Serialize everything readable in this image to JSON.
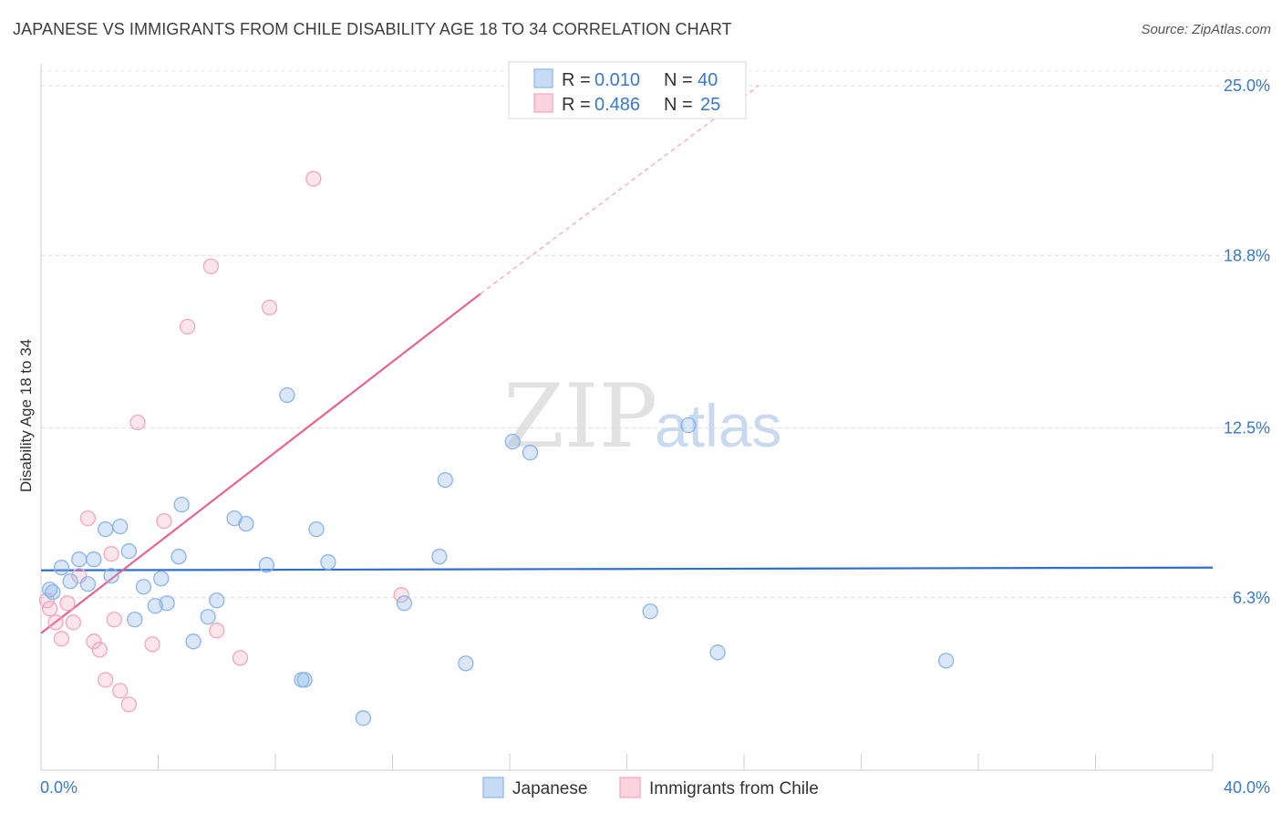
{
  "header": {
    "title": "JAPANESE VS IMMIGRANTS FROM CHILE DISABILITY AGE 18 TO 34 CORRELATION CHART",
    "source": "Source: ZipAtlas.com"
  },
  "watermark": {
    "zip": "ZIP",
    "atlas": "atlas"
  },
  "legend": {
    "r_label": "R =",
    "n_label": "N =",
    "entries": [
      {
        "r": "0.010",
        "n": "40"
      },
      {
        "r": "0.486",
        "n": "25"
      }
    ]
  },
  "chart_data": {
    "type": "scatter",
    "title": "JAPANESE VS IMMIGRANTS FROM CHILE DISABILITY AGE 18 TO 34 CORRELATION CHART",
    "xlabel": "",
    "ylabel": "Disability Age 18 to 34",
    "xlim": [
      0,
      40
    ],
    "ylim": [
      0,
      25.8
    ],
    "x_tick_labels": [
      "0.0%",
      "40.0%"
    ],
    "y_ticks": [
      6.3,
      12.5,
      18.8,
      25.0
    ],
    "y_tick_labels": [
      "6.3%",
      "12.5%",
      "18.8%",
      "25.0%"
    ],
    "grid": "horizontal dashed",
    "colors": {
      "japanese": "#8ab4e8",
      "chile": "#f3a5bc",
      "japanese_line": "#2f6fcc",
      "chile_line": "#e8638f",
      "tick": "#3a78c9"
    },
    "series": [
      {
        "name": "Japanese",
        "R": 0.01,
        "N": 40,
        "trend": {
          "x": [
            0,
            40
          ],
          "y": [
            7.3,
            7.4
          ]
        },
        "points": [
          [
            0.3,
            6.6
          ],
          [
            0.4,
            6.5
          ],
          [
            0.7,
            7.4
          ],
          [
            1.0,
            6.9
          ],
          [
            1.3,
            7.7
          ],
          [
            1.6,
            6.8
          ],
          [
            1.8,
            7.7
          ],
          [
            2.2,
            8.8
          ],
          [
            2.4,
            7.1
          ],
          [
            2.7,
            8.9
          ],
          [
            3.0,
            8.0
          ],
          [
            3.2,
            5.5
          ],
          [
            3.5,
            6.7
          ],
          [
            3.9,
            6.0
          ],
          [
            4.1,
            7.0
          ],
          [
            4.3,
            6.1
          ],
          [
            4.7,
            7.8
          ],
          [
            4.8,
            9.7
          ],
          [
            5.2,
            4.7
          ],
          [
            5.7,
            5.6
          ],
          [
            6.0,
            6.2
          ],
          [
            6.6,
            9.2
          ],
          [
            7.0,
            9.0
          ],
          [
            7.7,
            7.5
          ],
          [
            8.4,
            13.7
          ],
          [
            8.9,
            3.3
          ],
          [
            9.0,
            3.3
          ],
          [
            9.4,
            8.8
          ],
          [
            9.8,
            7.6
          ],
          [
            11.0,
            1.9
          ],
          [
            12.4,
            6.1
          ],
          [
            13.6,
            7.8
          ],
          [
            13.8,
            10.6
          ],
          [
            14.5,
            3.9
          ],
          [
            16.1,
            12.0
          ],
          [
            16.7,
            11.6
          ],
          [
            20.8,
            5.8
          ],
          [
            22.1,
            12.6
          ],
          [
            23.1,
            4.3
          ],
          [
            30.9,
            4.0
          ]
        ]
      },
      {
        "name": "Immigrants from Chile",
        "R": 0.486,
        "N": 25,
        "trend": {
          "x": [
            0,
            15.0,
            24.5
          ],
          "y": [
            5.0,
            17.4,
            25.0
          ]
        },
        "points": [
          [
            0.2,
            6.2
          ],
          [
            0.3,
            5.9
          ],
          [
            0.5,
            5.4
          ],
          [
            0.7,
            4.8
          ],
          [
            0.9,
            6.1
          ],
          [
            1.1,
            5.4
          ],
          [
            1.3,
            7.1
          ],
          [
            1.6,
            9.2
          ],
          [
            1.8,
            4.7
          ],
          [
            2.0,
            4.4
          ],
          [
            2.2,
            3.3
          ],
          [
            2.4,
            7.9
          ],
          [
            2.5,
            5.5
          ],
          [
            2.7,
            2.9
          ],
          [
            3.0,
            2.4
          ],
          [
            3.3,
            12.7
          ],
          [
            3.8,
            4.6
          ],
          [
            4.2,
            9.1
          ],
          [
            5.0,
            16.2
          ],
          [
            5.8,
            18.4
          ],
          [
            6.0,
            5.1
          ],
          [
            6.8,
            4.1
          ],
          [
            7.8,
            16.9
          ],
          [
            9.3,
            21.6
          ],
          [
            12.3,
            6.4
          ]
        ]
      }
    ]
  },
  "bottom_legend": {
    "items": [
      "Japanese",
      "Immigrants from Chile"
    ]
  }
}
